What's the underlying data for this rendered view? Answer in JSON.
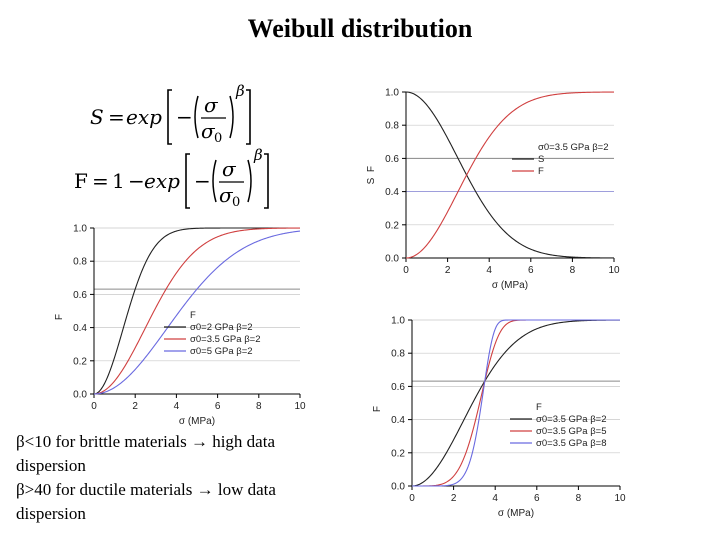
{
  "slide": {
    "title": "Weibull distribution",
    "notes": [
      "β<10 for brittle materials → high data dispersion",
      "β>40 for ductile materials → low data dispersion"
    ]
  },
  "formulas": {
    "survival": {
      "lhs": "S",
      "equals": "=",
      "func": "exp",
      "minus": "−",
      "numerator": "σ",
      "denominator": "σ",
      "denominator_sub": "0",
      "exponent": "β"
    },
    "failure": {
      "lhs": "F",
      "equals": "=",
      "one": "1",
      "minus": "−",
      "func": "exp",
      "numerator": "σ",
      "denominator": "σ",
      "denominator_sub": "0",
      "exponent": "β"
    }
  },
  "colors": {
    "black": "#222222",
    "red": "#d04040",
    "blue": "#6a6ae0",
    "ref_line": "#8a8a8a",
    "grid": "#c8c8c8"
  },
  "chart_data": [
    {
      "id": "chart-left",
      "type": "line",
      "xlabel": "σ (MPa)",
      "ylabel": "F",
      "xlim": [
        0,
        10
      ],
      "ylim": [
        0,
        1.0
      ],
      "xticks": [
        0,
        2,
        4,
        6,
        8,
        10
      ],
      "yticks": [
        0.0,
        0.2,
        0.4,
        0.6,
        0.8,
        1.0
      ],
      "hline": 0.632,
      "legend_title": "F",
      "legend_position": "lower-right",
      "series": [
        {
          "name": "σ0=2 GPa β=2",
          "sigma0": 2,
          "beta": 2,
          "kind": "F",
          "color": "black"
        },
        {
          "name": "σ0=3.5 GPa β=2",
          "sigma0": 3.5,
          "beta": 2,
          "kind": "F",
          "color": "red"
        },
        {
          "name": "σ0=5 GPa β=2",
          "sigma0": 5,
          "beta": 2,
          "kind": "F",
          "color": "blue"
        }
      ],
      "x": [
        0,
        1,
        2,
        3,
        4,
        5,
        6,
        7,
        8,
        9,
        10
      ],
      "values": {
        "σ0=2 GPa β=2": [
          0,
          0.221,
          0.632,
          0.895,
          0.982,
          0.998,
          1.0,
          1.0,
          1.0,
          1.0,
          1.0
        ],
        "σ0=3.5 GPa β=2": [
          0,
          0.078,
          0.279,
          0.52,
          0.729,
          0.87,
          0.947,
          0.982,
          0.995,
          0.999,
          1.0
        ],
        "σ0=5 GPa β=2": [
          0,
          0.039,
          0.148,
          0.302,
          0.473,
          0.632,
          0.763,
          0.859,
          0.923,
          0.961,
          0.982
        ]
      }
    },
    {
      "id": "chart-top-right",
      "type": "line",
      "xlabel": "σ (MPa)",
      "ylabel": "S",
      "ylabel2": "F",
      "xlim": [
        0,
        10
      ],
      "ylim": [
        0,
        1.0
      ],
      "xticks": [
        0,
        2,
        4,
        6,
        8,
        10
      ],
      "yticks": [
        0.0,
        0.2,
        0.4,
        0.6,
        0.8,
        1.0
      ],
      "hline": 0.6,
      "hline2": 0.4,
      "legend_title": "σ0=3.5 GPa β=2",
      "legend_position": "right",
      "series": [
        {
          "name": "S",
          "sigma0": 3.5,
          "beta": 2,
          "kind": "S",
          "color": "black"
        },
        {
          "name": "F",
          "sigma0": 3.5,
          "beta": 2,
          "kind": "F",
          "color": "red"
        }
      ],
      "x": [
        0,
        1,
        2,
        3,
        4,
        5,
        6,
        7,
        8,
        9,
        10
      ],
      "values": {
        "S": [
          1,
          0.922,
          0.721,
          0.48,
          0.271,
          0.13,
          0.053,
          0.018,
          0.005,
          0.001,
          0
        ],
        "F": [
          0,
          0.078,
          0.279,
          0.52,
          0.729,
          0.87,
          0.947,
          0.982,
          0.995,
          0.999,
          1.0
        ]
      }
    },
    {
      "id": "chart-bottom-right",
      "type": "line",
      "xlabel": "σ (MPa)",
      "ylabel": "F",
      "xlim": [
        0,
        10
      ],
      "ylim": [
        0,
        1.0
      ],
      "xticks": [
        0,
        2,
        4,
        6,
        8,
        10
      ],
      "yticks": [
        0.0,
        0.2,
        0.4,
        0.6,
        0.8,
        1.0
      ],
      "hline": 0.632,
      "legend_title": "F",
      "legend_position": "lower-right",
      "series": [
        {
          "name": "σ0=3.5 GPa β=2",
          "sigma0": 3.5,
          "beta": 2,
          "kind": "F",
          "color": "black"
        },
        {
          "name": "σ0=3.5 GPa β=5",
          "sigma0": 3.5,
          "beta": 5,
          "kind": "F",
          "color": "red"
        },
        {
          "name": "σ0=3.5 GPa β=8",
          "sigma0": 3.5,
          "beta": 8,
          "kind": "F",
          "color": "blue"
        }
      ],
      "x": [
        0,
        1,
        2,
        3,
        4,
        5,
        6,
        7,
        8,
        9,
        10
      ],
      "values": {
        "σ0=3.5 GPa β=2": [
          0,
          0.078,
          0.279,
          0.52,
          0.729,
          0.87,
          0.947,
          0.982,
          0.995,
          0.999,
          1.0
        ],
        "σ0=3.5 GPa β=5": [
          0,
          0.002,
          0.059,
          0.369,
          0.856,
          0.997,
          1.0,
          1.0,
          1.0,
          1.0,
          1.0
        ],
        "σ0=3.5 GPa β=8": [
          0,
          0.0,
          0.011,
          0.291,
          0.935,
          1.0,
          1.0,
          1.0,
          1.0,
          1.0,
          1.0
        ]
      }
    }
  ]
}
